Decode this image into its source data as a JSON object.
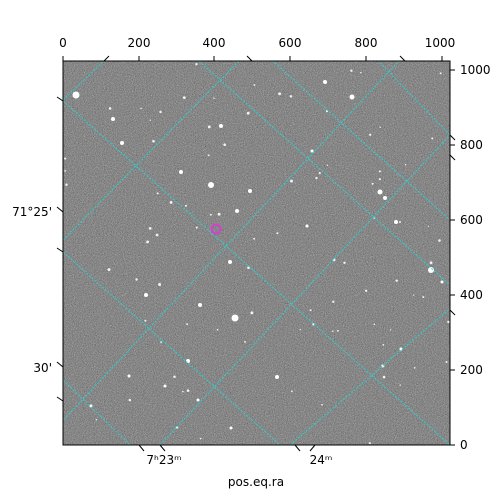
{
  "figure": {
    "xlabel": "pos.eq.ra",
    "top_ticks": [
      "0",
      "200",
      "400",
      "600",
      "800",
      "1000"
    ],
    "right_ticks": [
      "0",
      "200",
      "400",
      "600",
      "800",
      "1000"
    ],
    "bottom_ticks": [
      "7ʰ23ᵐ",
      "24ᵐ"
    ],
    "left_ticks": [
      "71°25'",
      "30'"
    ],
    "pixel_range": [
      0,
      1020
    ],
    "grid_color": "#27d3d3",
    "marker_color": "#d140d1"
  }
}
